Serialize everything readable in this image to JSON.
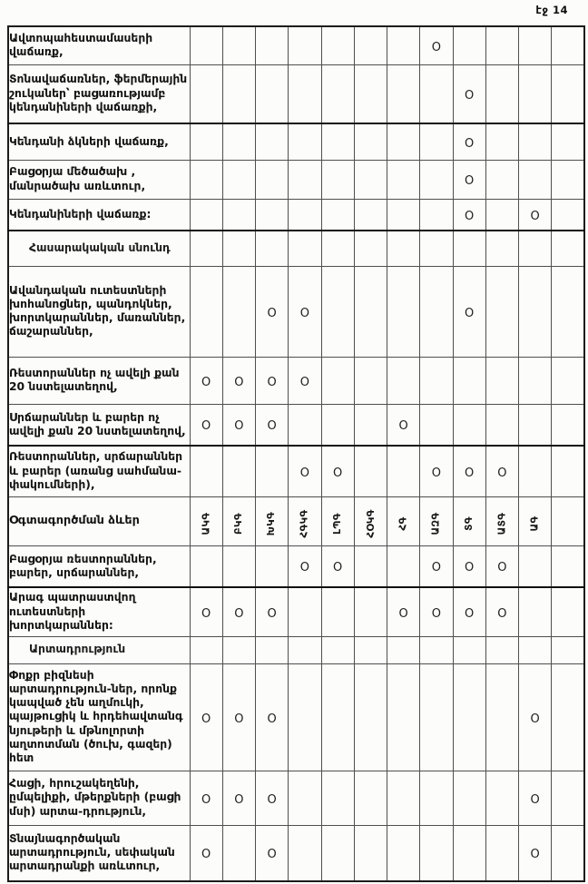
{
  "page": {
    "label": "էջ 14"
  },
  "table": {
    "marker": "O",
    "num_data_columns": 12,
    "usage_header": {
      "label": "Օգտագործման ձևեր",
      "col_labels": [
        "ԱԿԳ",
        "ԲԿԳ",
        "ԽԿԳ",
        "ՀԳԿԳ",
        "ԼՊԳ",
        "ՀՕԿԳ",
        "ՀԳ",
        "ԱԶԳ",
        "ՏԳ",
        "ԱՏԳ",
        "ԱԳ",
        ""
      ]
    },
    "rows": [
      {
        "type": "data",
        "label": "Ավտոպահեստամասերի վաճառք,",
        "marks": [
          8
        ]
      },
      {
        "type": "data",
        "label": "Տոնավաճառներ, ֆերմերային շուկաներ՝ բացառությամբ կենդանիների վաճառքի,",
        "marks": [
          9
        ]
      },
      {
        "type": "data",
        "label": "Կենդանի  ձկների վաճառք,",
        "marks": [
          9
        ]
      },
      {
        "type": "data",
        "label": "Բացօրյա մեծածախ , մանրածախ առևտուր,",
        "marks": [
          9
        ]
      },
      {
        "type": "data",
        "label": "Կենդանիների վաճառք:",
        "marks": [
          9,
          11
        ]
      },
      {
        "type": "section",
        "label": "Հասարակական սնունդ",
        "marks": []
      },
      {
        "type": "data",
        "label": "Ավանդական ուտեստների խոհանոցներ, պանդոկներ, խորտկարաններ, մառաններ, ճաշարաններ,",
        "marks": [
          3,
          4,
          9
        ]
      },
      {
        "type": "data",
        "label": "Ռեստորաններ  ոչ ավելի քան 20 նստելատեղով,",
        "marks": [
          1,
          2,
          3,
          4
        ]
      },
      {
        "type": "data",
        "label": "Սրճարաններ և բարեր  ոչ ավելի քան 20 նստելատեղով,",
        "marks": [
          1,
          2,
          3,
          7
        ]
      },
      {
        "type": "data",
        "label": "Ռեստորաններ, սրճարաններ և բարեր (առանց սահմանա-փակումների),",
        "marks": [
          4,
          5,
          8,
          9,
          10
        ]
      },
      {
        "type": "usage-header",
        "label": "Օգտագործման ձևեր",
        "marks": []
      },
      {
        "type": "data",
        "label": "Բացօրյա ռեստորաններ, բարեր, սրճարաններ,",
        "marks": [
          4,
          5,
          8,
          9,
          10
        ]
      },
      {
        "type": "data",
        "label": "Արագ պատրաստվող ուտեստների խորտկարաններ:",
        "marks": [
          1,
          2,
          3,
          7,
          8,
          9,
          10
        ]
      },
      {
        "type": "section",
        "label": "Արտադրություն",
        "marks": []
      },
      {
        "type": "data",
        "label": "Փոքր բիզնեսի արտադրություն-ներ, որոնք կապված չեն աղմուկի, պայթուցիկ և հրդեհավտանգ նյութերի և մթնոլորտի աղտոտման (ծուխ, գազեր) հետ",
        "marks": [
          1,
          2,
          3,
          11
        ]
      },
      {
        "type": "data",
        "label": "Հացի, հրուշակեղենի, ըմպելիքի, մթերքների (բացի մսի) արտա-դրություն,",
        "marks": [
          1,
          2,
          3,
          11
        ]
      },
      {
        "type": "data",
        "label": "Տնայնագործական արտադրություն, սեփական արտադրանքի առևտուր,",
        "marks": [
          1,
          3,
          11
        ]
      }
    ]
  }
}
